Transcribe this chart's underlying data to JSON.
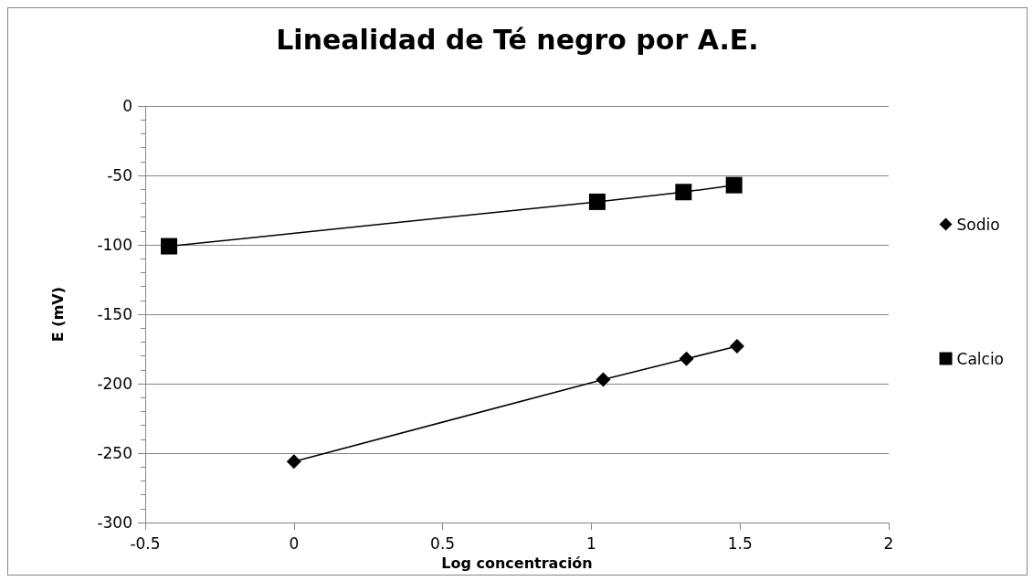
{
  "chart_data": {
    "type": "line",
    "title": "Linealidad de Té negro por A.E.",
    "xlabel": "Log concentración",
    "ylabel": "E (mV)",
    "series": [
      {
        "name": "Sodio",
        "color": "#000000",
        "marker": "diamond",
        "x": [
          0,
          1.04,
          1.32,
          1.49
        ],
        "values": [
          -256,
          -197,
          -182,
          -173
        ]
      },
      {
        "name": "Calcio",
        "color": "#000000",
        "marker": "square",
        "x": [
          -0.42,
          1.02,
          1.31,
          1.48
        ],
        "values": [
          -101,
          -69,
          -62,
          -57
        ]
      }
    ],
    "xlim": [
      -0.5,
      2
    ],
    "xticks": [
      -0.5,
      0,
      0.5,
      1,
      1.5,
      2
    ],
    "ylim": [
      -300,
      0
    ],
    "yticks": [
      -300,
      -250,
      -200,
      -150,
      -100,
      -50,
      0
    ],
    "grid": "y",
    "legend": "right",
    "line_style": "solid"
  }
}
